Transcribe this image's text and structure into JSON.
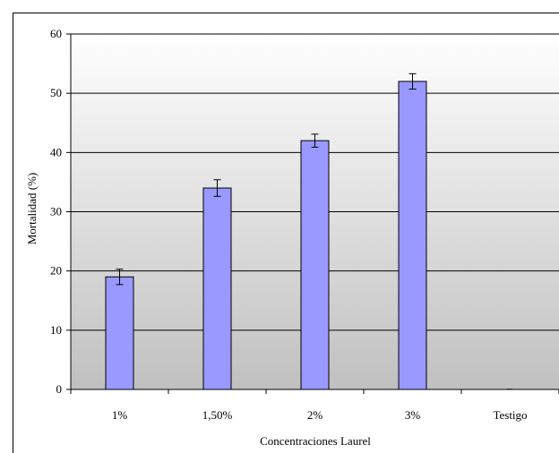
{
  "chart_data": {
    "type": "bar",
    "title": "",
    "xlabel": "Concentraciones Laurel",
    "ylabel": "Mortalidad (%)",
    "categories": [
      "1%",
      "1,50%",
      "2%",
      "3%",
      "Testigo"
    ],
    "values": [
      19,
      34,
      42,
      52,
      0
    ],
    "errors": [
      1.3,
      1.4,
      1.1,
      1.3,
      0
    ],
    "ylim": [
      0,
      60
    ],
    "yticks": [
      0,
      10,
      20,
      30,
      40,
      50,
      60
    ],
    "grid": true,
    "legend": "none",
    "colors": {
      "bar_fill": "#9999ff",
      "bar_stroke": "#000000",
      "plot_bg_top": "#ffffff",
      "plot_bg_bottom": "#c0c0c0",
      "gridline": "#000000"
    }
  }
}
